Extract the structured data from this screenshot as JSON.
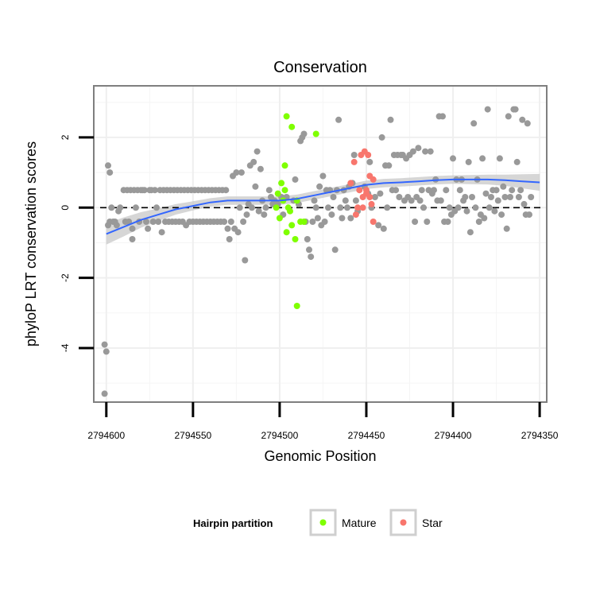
{
  "chart_data": {
    "type": "scatter",
    "title": "Conservation",
    "xlabel": "Genomic Position",
    "ylabel": "phyloP LRT conservation scores",
    "x_reversed": true,
    "xlim": [
      2794350,
      2794600
    ],
    "ylim": [
      -5.5,
      3.2
    ],
    "x_ticks": [
      2794600,
      2794550,
      2794500,
      2794450,
      2794400,
      2794350
    ],
    "x_tick_labels": [
      "2794600",
      "2794550",
      "2794500",
      "2794450",
      "2794400",
      "2794350"
    ],
    "y_ticks": [
      2,
      0,
      -2,
      -4
    ],
    "y_tick_labels": [
      "2",
      "0",
      "-2",
      "-4"
    ],
    "reference_line": {
      "y": 0,
      "style": "dashed"
    },
    "legend": {
      "title": "Hairpin partition",
      "position": "bottom",
      "entries": [
        {
          "label": "Mature",
          "color": "#7FFF00"
        },
        {
          "label": "Star",
          "color": "#F8766D"
        }
      ]
    },
    "colors": {
      "other": "#999999",
      "mature": "#7FFF00",
      "star": "#F8766D",
      "smooth": "#3366FF",
      "ribbon": "#C8C8C8"
    },
    "series": [
      {
        "name": "Other",
        "points": [
          [
            2794601,
            -3.9
          ],
          [
            2794600,
            -4.1
          ],
          [
            2794601,
            -5.3
          ],
          [
            2794599,
            1.2
          ],
          [
            2794598,
            1.0
          ],
          [
            2794599,
            -0.5
          ],
          [
            2794598,
            -0.4
          ],
          [
            2794597,
            0.0
          ],
          [
            2794596,
            -0.4
          ],
          [
            2794595,
            -0.4
          ],
          [
            2794594,
            -0.5
          ],
          [
            2794593,
            -0.1
          ],
          [
            2794592,
            0.0
          ],
          [
            2794590,
            0.5
          ],
          [
            2794589,
            -0.4
          ],
          [
            2794588,
            0.5
          ],
          [
            2794587,
            -0.4
          ],
          [
            2794586,
            0.5
          ],
          [
            2794585,
            -0.9
          ],
          [
            2794585,
            -0.6
          ],
          [
            2794584,
            0.5
          ],
          [
            2794583,
            0.0
          ],
          [
            2794582,
            0.5
          ],
          [
            2794581,
            -0.4
          ],
          [
            2794580,
            0.5
          ],
          [
            2794579,
            0.5
          ],
          [
            2794578,
            0.5
          ],
          [
            2794577,
            -0.4
          ],
          [
            2794576,
            -0.6
          ],
          [
            2794575,
            0.5
          ],
          [
            2794574,
            0.5
          ],
          [
            2794573,
            -0.4
          ],
          [
            2794572,
            0.5
          ],
          [
            2794571,
            0.0
          ],
          [
            2794570,
            -0.4
          ],
          [
            2794569,
            0.5
          ],
          [
            2794568,
            -0.7
          ],
          [
            2794567,
            0.5
          ],
          [
            2794566,
            -0.4
          ],
          [
            2794565,
            0.5
          ],
          [
            2794564,
            -0.4
          ],
          [
            2794563,
            0.5
          ],
          [
            2794562,
            -0.4
          ],
          [
            2794561,
            0.5
          ],
          [
            2794560,
            -0.4
          ],
          [
            2794559,
            0.5
          ],
          [
            2794558,
            -0.4
          ],
          [
            2794557,
            0.5
          ],
          [
            2794556,
            -0.4
          ],
          [
            2794555,
            0.5
          ],
          [
            2794554,
            -0.5
          ],
          [
            2794553,
            0.5
          ],
          [
            2794552,
            -0.4
          ],
          [
            2794551,
            0.5
          ],
          [
            2794550,
            -0.4
          ],
          [
            2794549,
            0.5
          ],
          [
            2794548,
            -0.4
          ],
          [
            2794547,
            0.5
          ],
          [
            2794546,
            -0.4
          ],
          [
            2794545,
            0.5
          ],
          [
            2794544,
            -0.4
          ],
          [
            2794543,
            0.5
          ],
          [
            2794542,
            -0.4
          ],
          [
            2794541,
            0.5
          ],
          [
            2794540,
            -0.4
          ],
          [
            2794539,
            0.5
          ],
          [
            2794538,
            -0.4
          ],
          [
            2794537,
            0.5
          ],
          [
            2794536,
            -0.4
          ],
          [
            2794535,
            0.5
          ],
          [
            2794534,
            -0.4
          ],
          [
            2794533,
            0.5
          ],
          [
            2794532,
            -0.4
          ],
          [
            2794531,
            0.5
          ],
          [
            2794530,
            -0.6
          ],
          [
            2794529,
            -0.9
          ],
          [
            2794528,
            -0.4
          ],
          [
            2794527,
            0.9
          ],
          [
            2794526,
            -0.6
          ],
          [
            2794525,
            1.0
          ],
          [
            2794524,
            -0.7
          ],
          [
            2794523,
            0.0
          ],
          [
            2794522,
            1.0
          ],
          [
            2794521,
            -0.4
          ],
          [
            2794520,
            -1.5
          ],
          [
            2794519,
            -0.2
          ],
          [
            2794518,
            0.1
          ],
          [
            2794517,
            1.2
          ],
          [
            2794516,
            0.0
          ],
          [
            2794515,
            1.3
          ],
          [
            2794514,
            0.6
          ],
          [
            2794513,
            1.6
          ],
          [
            2794512,
            -0.1
          ],
          [
            2794511,
            1.1
          ],
          [
            2794510,
            0.2
          ],
          [
            2794509,
            -0.2
          ],
          [
            2794508,
            0.0
          ],
          [
            2794506,
            0.5
          ],
          [
            2794505,
            0.3
          ],
          [
            2794504,
            0.1
          ],
          [
            2794503,
            0.2
          ],
          [
            2794501,
            0.1
          ],
          [
            2794499,
            0.3
          ],
          [
            2794498,
            -0.2
          ],
          [
            2794496,
            0.3
          ],
          [
            2794492,
            0.2
          ],
          [
            2794491,
            0.8
          ],
          [
            2794489,
            0.1
          ],
          [
            2794488,
            1.9
          ],
          [
            2794487,
            2.0
          ],
          [
            2794486,
            2.1
          ],
          [
            2794485,
            -0.4
          ],
          [
            2794484,
            -0.9
          ],
          [
            2794483,
            -1.2
          ],
          [
            2794482,
            -1.4
          ],
          [
            2794481,
            -0.4
          ],
          [
            2794480,
            0.2
          ],
          [
            2794479,
            0.0
          ],
          [
            2794478,
            -0.3
          ],
          [
            2794477,
            0.6
          ],
          [
            2794476,
            -0.5
          ],
          [
            2794475,
            0.9
          ],
          [
            2794474,
            -0.4
          ],
          [
            2794473,
            0.5
          ],
          [
            2794472,
            0.0
          ],
          [
            2794471,
            0.5
          ],
          [
            2794470,
            -0.2
          ],
          [
            2794469,
            0.3
          ],
          [
            2794468,
            -1.2
          ],
          [
            2794467,
            0.5
          ],
          [
            2794466,
            2.5
          ],
          [
            2794465,
            0.0
          ],
          [
            2794464,
            -0.3
          ],
          [
            2794463,
            0.5
          ],
          [
            2794462,
            0.2
          ],
          [
            2794461,
            0.0
          ],
          [
            2794460,
            0.6
          ],
          [
            2794459,
            -0.3
          ],
          [
            2794458,
            0.7
          ],
          [
            2794457,
            1.5
          ],
          [
            2794456,
            0.2
          ],
          [
            2794455,
            -0.1
          ],
          [
            2794451,
            0.6
          ],
          [
            2794449,
            0.4
          ],
          [
            2794448,
            1.3
          ],
          [
            2794447,
            0.0
          ],
          [
            2794445,
            0.3
          ],
          [
            2794443,
            -0.5
          ],
          [
            2794442,
            0.4
          ],
          [
            2794441,
            2.0
          ],
          [
            2794440,
            -0.6
          ],
          [
            2794439,
            1.2
          ],
          [
            2794438,
            0.0
          ],
          [
            2794437,
            1.2
          ],
          [
            2794436,
            2.5
          ],
          [
            2794435,
            0.5
          ],
          [
            2794434,
            1.5
          ],
          [
            2794433,
            0.5
          ],
          [
            2794432,
            1.5
          ],
          [
            2794431,
            0.3
          ],
          [
            2794430,
            1.5
          ],
          [
            2794429,
            1.5
          ],
          [
            2794428,
            0.2
          ],
          [
            2794427,
            1.4
          ],
          [
            2794426,
            0.3
          ],
          [
            2794425,
            1.5
          ],
          [
            2794424,
            0.2
          ],
          [
            2794423,
            1.6
          ],
          [
            2794422,
            -0.4
          ],
          [
            2794421,
            0.3
          ],
          [
            2794420,
            1.7
          ],
          [
            2794419,
            0.2
          ],
          [
            2794418,
            0.5
          ],
          [
            2794417,
            0.0
          ],
          [
            2794416,
            1.6
          ],
          [
            2794415,
            -0.4
          ],
          [
            2794414,
            0.5
          ],
          [
            2794413,
            1.6
          ],
          [
            2794412,
            0.4
          ],
          [
            2794411,
            0.5
          ],
          [
            2794410,
            0.8
          ],
          [
            2794409,
            0.2
          ],
          [
            2794408,
            2.6
          ],
          [
            2794407,
            0.2
          ],
          [
            2794406,
            2.6
          ],
          [
            2794405,
            -0.4
          ],
          [
            2794404,
            0.5
          ],
          [
            2794403,
            -0.4
          ],
          [
            2794402,
            0.0
          ],
          [
            2794401,
            -0.2
          ],
          [
            2794400,
            1.4
          ],
          [
            2794399,
            -0.1
          ],
          [
            2794398,
            0.8
          ],
          [
            2794397,
            0.0
          ],
          [
            2794396,
            0.5
          ],
          [
            2794395,
            0.8
          ],
          [
            2794394,
            0.2
          ],
          [
            2794393,
            0.3
          ],
          [
            2794392,
            -0.1
          ],
          [
            2794391,
            1.3
          ],
          [
            2794390,
            -0.7
          ],
          [
            2794389,
            0.3
          ],
          [
            2794388,
            2.4
          ],
          [
            2794387,
            0.0
          ],
          [
            2794386,
            0.8
          ],
          [
            2794385,
            -0.4
          ],
          [
            2794384,
            -0.2
          ],
          [
            2794383,
            1.4
          ],
          [
            2794382,
            -0.3
          ],
          [
            2794381,
            0.4
          ],
          [
            2794380,
            2.8
          ],
          [
            2794379,
            0.0
          ],
          [
            2794378,
            0.3
          ],
          [
            2794377,
            0.5
          ],
          [
            2794376,
            -0.1
          ],
          [
            2794375,
            0.5
          ],
          [
            2794374,
            0.2
          ],
          [
            2794373,
            1.4
          ],
          [
            2794372,
            -0.2
          ],
          [
            2794371,
            0.6
          ],
          [
            2794370,
            0.3
          ],
          [
            2794369,
            -0.6
          ],
          [
            2794368,
            2.6
          ],
          [
            2794367,
            0.3
          ],
          [
            2794366,
            0.5
          ],
          [
            2794365,
            2.8
          ],
          [
            2794364,
            2.8
          ],
          [
            2794363,
            1.3
          ],
          [
            2794362,
            0.3
          ],
          [
            2794361,
            0.5
          ],
          [
            2794360,
            2.5
          ],
          [
            2794359,
            0.1
          ],
          [
            2794358,
            -0.2
          ],
          [
            2794357,
            2.4
          ],
          [
            2794356,
            -0.2
          ],
          [
            2794355,
            0.3
          ]
        ]
      },
      {
        "name": "Mature",
        "points": [
          [
            2794496,
            2.6
          ],
          [
            2794493,
            2.3
          ],
          [
            2794479,
            2.1
          ],
          [
            2794497,
            1.2
          ],
          [
            2794499,
            0.7
          ],
          [
            2794501,
            0.4
          ],
          [
            2794498,
            0.2
          ],
          [
            2794495,
            0.0
          ],
          [
            2794490,
            0.2
          ],
          [
            2794497,
            0.5
          ],
          [
            2794502,
            0.0
          ],
          [
            2794494,
            -0.1
          ],
          [
            2794500,
            -0.3
          ],
          [
            2794493,
            -0.5
          ],
          [
            2794488,
            -0.4
          ],
          [
            2794486,
            -0.4
          ],
          [
            2794496,
            -0.7
          ],
          [
            2794491,
            -0.9
          ],
          [
            2794490,
            -2.8
          ]
        ]
      },
      {
        "name": "Star",
        "points": [
          [
            2794453,
            1.5
          ],
          [
            2794451,
            1.6
          ],
          [
            2794449,
            1.5
          ],
          [
            2794457,
            1.3
          ],
          [
            2794448,
            0.9
          ],
          [
            2794446,
            0.8
          ],
          [
            2794459,
            0.7
          ],
          [
            2794454,
            0.5
          ],
          [
            2794450,
            0.5
          ],
          [
            2794452,
            0.3
          ],
          [
            2794450,
            0.4
          ],
          [
            2794448,
            0.3
          ],
          [
            2794447,
            0.1
          ],
          [
            2794455,
            0.0
          ],
          [
            2794452,
            0.0
          ],
          [
            2794456,
            -0.2
          ],
          [
            2794446,
            -0.4
          ]
        ]
      }
    ],
    "smooth": {
      "name": "loess fit",
      "x": [
        2794600,
        2794590,
        2794580,
        2794570,
        2794560,
        2794550,
        2794540,
        2794530,
        2794520,
        2794510,
        2794500,
        2794490,
        2794480,
        2794470,
        2794460,
        2794450,
        2794440,
        2794430,
        2794420,
        2794410,
        2794400,
        2794390,
        2794380,
        2794370,
        2794360,
        2794350
      ],
      "y": [
        -0.75,
        -0.55,
        -0.35,
        -0.2,
        -0.05,
        0.05,
        0.15,
        0.2,
        0.2,
        0.2,
        0.2,
        0.25,
        0.35,
        0.45,
        0.55,
        0.65,
        0.7,
        0.72,
        0.75,
        0.78,
        0.8,
        0.8,
        0.8,
        0.78,
        0.75,
        0.72
      ],
      "se": [
        0.3,
        0.27,
        0.22,
        0.18,
        0.15,
        0.13,
        0.12,
        0.12,
        0.12,
        0.12,
        0.12,
        0.12,
        0.12,
        0.12,
        0.12,
        0.12,
        0.12,
        0.12,
        0.12,
        0.12,
        0.12,
        0.13,
        0.14,
        0.16,
        0.2,
        0.24
      ]
    }
  }
}
